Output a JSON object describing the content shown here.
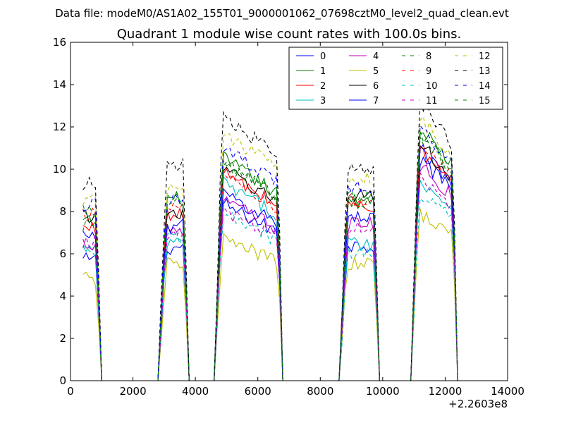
{
  "chart_data": {
    "type": "line",
    "suptitle": "Data file: modeM0/AS1A02_155T01_9000001062_07698cztM0_level2_quad_clean.evt",
    "title": "Quadrant 1 module wise count rates with 100.0s bins.",
    "xlabel": "",
    "ylabel": "",
    "x_offset_label": "+2.2603e8",
    "xlim": [
      0,
      14000
    ],
    "ylim": [
      0,
      16
    ],
    "x_ticks": [
      "0",
      "2000",
      "4000",
      "6000",
      "8000",
      "10000",
      "12000",
      "14000"
    ],
    "y_ticks": [
      "0",
      "2",
      "4",
      "6",
      "8",
      "10",
      "12",
      "14",
      "16"
    ],
    "legend_position": "top-right",
    "segments": [
      {
        "start": 400,
        "end": 900,
        "ramp_x": 900
      },
      {
        "start": 2900,
        "end": 3700,
        "ramp_x": 2900
      },
      {
        "start": 4700,
        "end": 6700,
        "ramp_x": 4700
      },
      {
        "start": 8700,
        "end": 9800,
        "ramp_x": 8700
      },
      {
        "start": 11000,
        "end": 12300,
        "ramp_x": 11000
      }
    ],
    "x_sample_step": 100,
    "series": [
      {
        "name": "0",
        "color": "#0000ff",
        "style": "solid",
        "levels": [
          5.7,
          6.3,
          8.5,
          6.4,
          11.3
        ]
      },
      {
        "name": "1",
        "color": "#008000",
        "style": "solid",
        "levels": [
          7.5,
          8.6,
          10.7,
          8.6,
          12.3
        ]
      },
      {
        "name": "2",
        "color": "#ff0000",
        "style": "solid",
        "levels": [
          7.2,
          7.8,
          10.0,
          8.3,
          11.2
        ]
      },
      {
        "name": "3",
        "color": "#00bfbf",
        "style": "solid",
        "levels": [
          6.2,
          6.5,
          9.5,
          6.5,
          9.8
        ]
      },
      {
        "name": "4",
        "color": "#bf00bf",
        "style": "solid",
        "levels": [
          6.5,
          7.2,
          8.7,
          7.4,
          10.5
        ]
      },
      {
        "name": "5",
        "color": "#bfbf00",
        "style": "solid",
        "levels": [
          4.8,
          5.5,
          6.8,
          5.5,
          8.2
        ]
      },
      {
        "name": "6",
        "color": "#000000",
        "style": "solid",
        "levels": [
          7.8,
          8.0,
          10.2,
          8.8,
          11.5
        ]
      },
      {
        "name": "7",
        "color": "#0000ff",
        "style": "solid",
        "levels": [
          6.8,
          7.3,
          9.0,
          7.8,
          10.8
        ]
      },
      {
        "name": "8",
        "color": "#008000",
        "style": "dashed",
        "levels": [
          8.0,
          8.5,
          10.5,
          8.8,
          12.0
        ]
      },
      {
        "name": "9",
        "color": "#ff0000",
        "style": "dashed",
        "levels": [
          7.8,
          8.3,
          9.8,
          8.5,
          11.5
        ]
      },
      {
        "name": "10",
        "color": "#00bfbf",
        "style": "dashed",
        "levels": [
          6.0,
          6.8,
          8.0,
          6.0,
          9.2
        ]
      },
      {
        "name": "11",
        "color": "#bf00bf",
        "style": "dashed",
        "levels": [
          6.6,
          7.0,
          8.2,
          7.2,
          10.0
        ]
      },
      {
        "name": "12",
        "color": "#bfbf00",
        "style": "dashed",
        "levels": [
          8.6,
          9.0,
          12.0,
          9.5,
          12.8
        ]
      },
      {
        "name": "13",
        "color": "#000000",
        "style": "dashed",
        "levels": [
          9.3,
          10.2,
          12.8,
          10.0,
          13.5
        ]
      },
      {
        "name": "14",
        "color": "#0000ff",
        "style": "dashed",
        "levels": [
          8.3,
          8.7,
          11.3,
          9.2,
          12.3
        ]
      },
      {
        "name": "15",
        "color": "#008000",
        "style": "dashed",
        "levels": [
          7.3,
          8.3,
          10.5,
          8.4,
          12.0
        ]
      }
    ]
  }
}
